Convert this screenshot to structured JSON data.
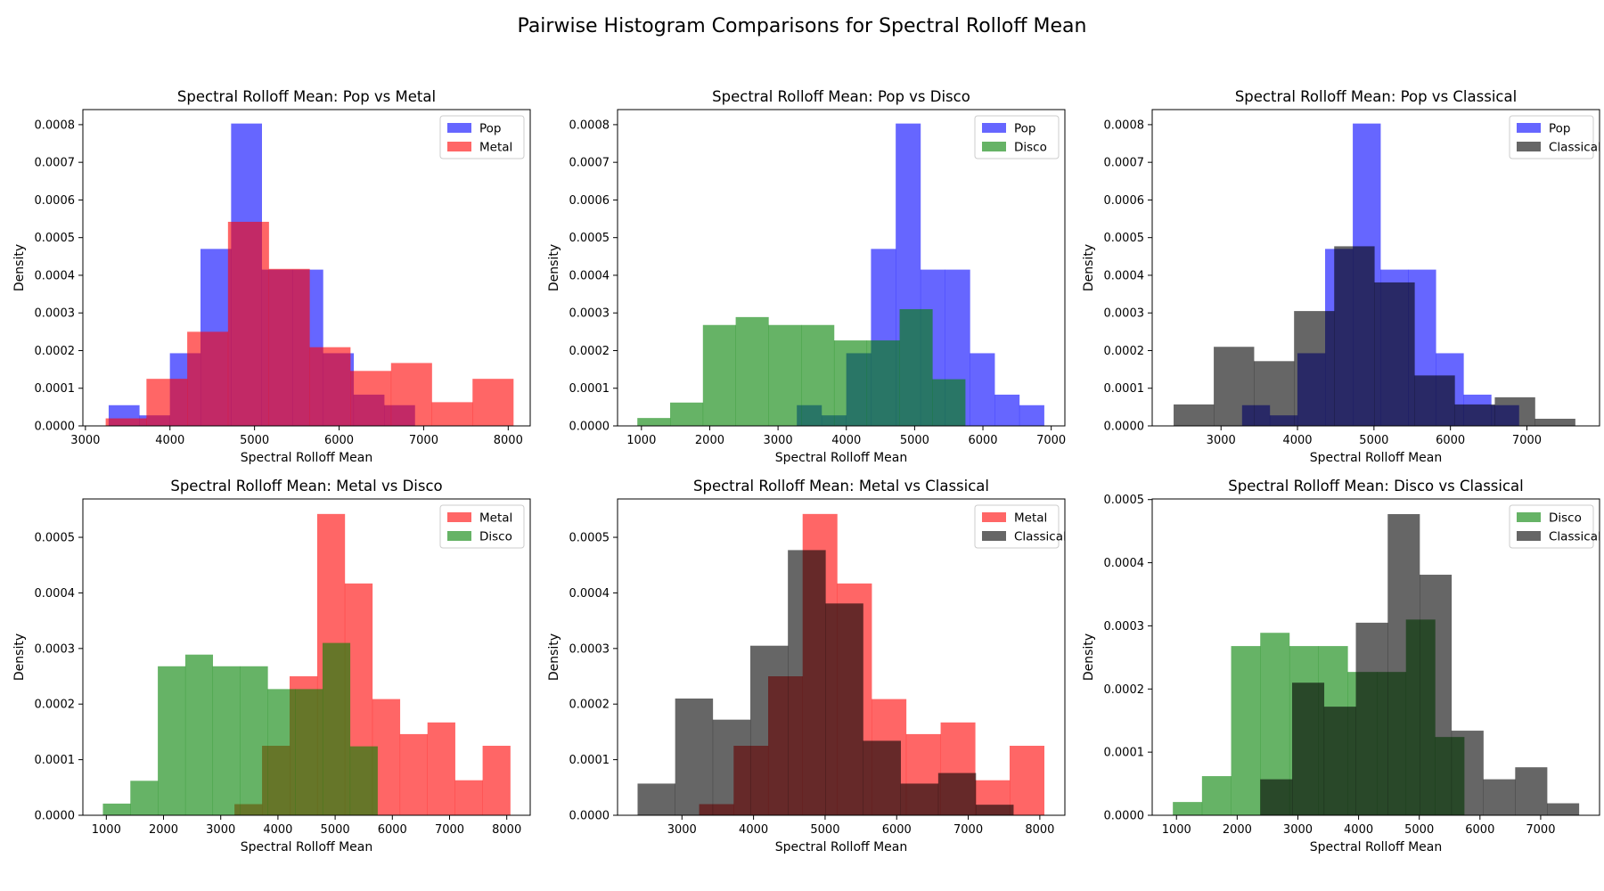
{
  "figure": {
    "suptitle": "Pairwise Histogram Comparisons for Spectral Rolloff Mean"
  },
  "chart_data": [
    {
      "type": "histogram",
      "title": "Spectral Rolloff Mean: Pop vs Metal",
      "xlabel": "Spectral Rolloff Mean",
      "ylabel": "Density",
      "xlim": [
        2970,
        8260
      ],
      "ylim": [
        0,
        0.00084
      ],
      "xticks": [
        3000,
        4000,
        5000,
        6000,
        7000,
        8000
      ],
      "yticks": [
        0,
        0.0001,
        0.0002,
        0.0003,
        0.0004,
        0.0005,
        0.0006,
        0.0007,
        0.0008
      ],
      "ytick_decimals": 4,
      "legend": "upper right",
      "series": [
        {
          "name": "Pop",
          "color": "#0000ff",
          "edges": [
            3275,
            3637,
            3999,
            4361,
            4723,
            5085,
            5447,
            5809,
            6171,
            6533,
            6895
          ],
          "values": [
            5.5e-05,
            2.8e-05,
            0.000193,
            0.00047,
            0.000803,
            0.000415,
            0.000415,
            0.000193,
            8.3e-05,
            5.5e-05
          ]
        },
        {
          "name": "Metal",
          "color": "#ff0000",
          "edges": [
            3240,
            3722,
            4204,
            4686,
            5168,
            5650,
            6132,
            6614,
            7096,
            7578,
            8060
          ],
          "values": [
            2e-05,
            0.000125,
            0.00025,
            0.000542,
            0.000417,
            0.000209,
            0.000146,
            0.000167,
            6.3e-05,
            0.000125
          ]
        }
      ]
    },
    {
      "type": "histogram",
      "title": "Spectral Rolloff Mean: Pop vs Disco",
      "xlabel": "Spectral Rolloff Mean",
      "ylabel": "Density",
      "xlim": [
        650,
        7200
      ],
      "ylim": [
        0,
        0.00084
      ],
      "xticks": [
        1000,
        2000,
        3000,
        4000,
        5000,
        6000,
        7000
      ],
      "yticks": [
        0,
        0.0001,
        0.0002,
        0.0003,
        0.0004,
        0.0005,
        0.0006,
        0.0007,
        0.0008
      ],
      "ytick_decimals": 4,
      "legend": "upper right",
      "series": [
        {
          "name": "Pop",
          "color": "#0000ff",
          "edges": [
            3275,
            3637,
            3999,
            4361,
            4723,
            5085,
            5447,
            5809,
            6171,
            6533,
            6895
          ],
          "values": [
            5.5e-05,
            2.8e-05,
            0.000193,
            0.00047,
            0.000803,
            0.000415,
            0.000415,
            0.000193,
            8.3e-05,
            5.5e-05
          ]
        },
        {
          "name": "Disco",
          "color": "#008000",
          "edges": [
            940,
            1420,
            1900,
            2380,
            2860,
            3340,
            3820,
            4300,
            4780,
            5260,
            5740
          ],
          "values": [
            2.1e-05,
            6.2e-05,
            0.000268,
            0.000289,
            0.000268,
            0.000268,
            0.000227,
            0.000227,
            0.00031,
            0.000124
          ]
        }
      ]
    },
    {
      "type": "histogram",
      "title": "Spectral Rolloff Mean: Pop vs Classical",
      "xlabel": "Spectral Rolloff Mean",
      "ylabel": "Density",
      "xlim": [
        2100,
        7950
      ],
      "ylim": [
        0,
        0.00084
      ],
      "xticks": [
        3000,
        4000,
        5000,
        6000,
        7000
      ],
      "yticks": [
        0,
        0.0001,
        0.0002,
        0.0003,
        0.0004,
        0.0005,
        0.0006,
        0.0007,
        0.0008
      ],
      "ytick_decimals": 4,
      "legend": "upper right",
      "series": [
        {
          "name": "Pop",
          "color": "#0000ff",
          "edges": [
            3275,
            3637,
            3999,
            4361,
            4723,
            5085,
            5447,
            5809,
            6171,
            6533,
            6895
          ],
          "values": [
            5.5e-05,
            2.8e-05,
            0.000193,
            0.00047,
            0.000803,
            0.000415,
            0.000415,
            0.000193,
            8.3e-05,
            5.5e-05
          ]
        },
        {
          "name": "Classical",
          "color": "#000000",
          "edges": [
            2380,
            2905,
            3430,
            3955,
            4480,
            5005,
            5530,
            6055,
            6580,
            7105,
            7630
          ],
          "values": [
            5.7e-05,
            0.00021,
            0.000172,
            0.000305,
            0.000477,
            0.000381,
            0.000134,
            5.7e-05,
            7.6e-05,
            1.9e-05
          ]
        }
      ]
    },
    {
      "type": "histogram",
      "title": "Spectral Rolloff Mean: Metal vs Disco",
      "xlabel": "Spectral Rolloff Mean",
      "ylabel": "Density",
      "xlim": [
        590,
        8410
      ],
      "ylim": [
        0,
        0.000569
      ],
      "xticks": [
        1000,
        2000,
        3000,
        4000,
        5000,
        6000,
        7000,
        8000
      ],
      "yticks": [
        0,
        0.0001,
        0.0002,
        0.0003,
        0.0004,
        0.0005
      ],
      "ytick_decimals": 4,
      "legend": "upper right",
      "series": [
        {
          "name": "Metal",
          "color": "#ff0000",
          "edges": [
            3240,
            3722,
            4204,
            4686,
            5168,
            5650,
            6132,
            6614,
            7096,
            7578,
            8060
          ],
          "values": [
            2e-05,
            0.000125,
            0.00025,
            0.000542,
            0.000417,
            0.000209,
            0.000146,
            0.000167,
            6.3e-05,
            0.000125
          ]
        },
        {
          "name": "Disco",
          "color": "#008000",
          "edges": [
            940,
            1420,
            1900,
            2380,
            2860,
            3340,
            3820,
            4300,
            4780,
            5260,
            5740
          ],
          "values": [
            2.1e-05,
            6.2e-05,
            0.000268,
            0.000289,
            0.000268,
            0.000268,
            0.000227,
            0.000227,
            0.00031,
            0.000124
          ]
        }
      ]
    },
    {
      "type": "histogram",
      "title": "Spectral Rolloff Mean: Metal vs Classical",
      "xlabel": "Spectral Rolloff Mean",
      "ylabel": "Density",
      "xlim": [
        2100,
        8350
      ],
      "ylim": [
        0,
        0.000569
      ],
      "xticks": [
        3000,
        4000,
        5000,
        6000,
        7000,
        8000
      ],
      "yticks": [
        0,
        0.0001,
        0.0002,
        0.0003,
        0.0004,
        0.0005
      ],
      "ytick_decimals": 4,
      "legend": "upper right",
      "series": [
        {
          "name": "Metal",
          "color": "#ff0000",
          "edges": [
            3240,
            3722,
            4204,
            4686,
            5168,
            5650,
            6132,
            6614,
            7096,
            7578,
            8060
          ],
          "values": [
            2e-05,
            0.000125,
            0.00025,
            0.000542,
            0.000417,
            0.000209,
            0.000146,
            0.000167,
            6.3e-05,
            0.000125
          ]
        },
        {
          "name": "Classical",
          "color": "#000000",
          "edges": [
            2380,
            2905,
            3430,
            3955,
            4480,
            5005,
            5530,
            6055,
            6580,
            7105,
            7630
          ],
          "values": [
            5.7e-05,
            0.00021,
            0.000172,
            0.000305,
            0.000477,
            0.000381,
            0.000134,
            5.7e-05,
            7.6e-05,
            1.9e-05
          ]
        }
      ]
    },
    {
      "type": "histogram",
      "title": "Spectral Rolloff Mean: Disco vs Classical",
      "xlabel": "Spectral Rolloff Mean",
      "ylabel": "Density",
      "xlim": [
        600,
        7970
      ],
      "ylim": [
        0,
        0.000501
      ],
      "xticks": [
        1000,
        2000,
        3000,
        4000,
        5000,
        6000,
        7000
      ],
      "yticks": [
        0,
        0.0001,
        0.0002,
        0.0003,
        0.0004,
        0.0005
      ],
      "ytick_decimals": 4,
      "legend": "upper right",
      "series": [
        {
          "name": "Disco",
          "color": "#008000",
          "edges": [
            940,
            1420,
            1900,
            2380,
            2860,
            3340,
            3820,
            4300,
            4780,
            5260,
            5740
          ],
          "values": [
            2.1e-05,
            6.2e-05,
            0.000268,
            0.000289,
            0.000268,
            0.000268,
            0.000227,
            0.000227,
            0.00031,
            0.000124
          ]
        },
        {
          "name": "Classical",
          "color": "#000000",
          "edges": [
            2380,
            2905,
            3430,
            3955,
            4480,
            5005,
            5530,
            6055,
            6580,
            7105,
            7630
          ],
          "values": [
            5.7e-05,
            0.00021,
            0.000172,
            0.000305,
            0.000477,
            0.000381,
            0.000134,
            5.7e-05,
            7.6e-05,
            1.9e-05
          ]
        }
      ]
    }
  ]
}
